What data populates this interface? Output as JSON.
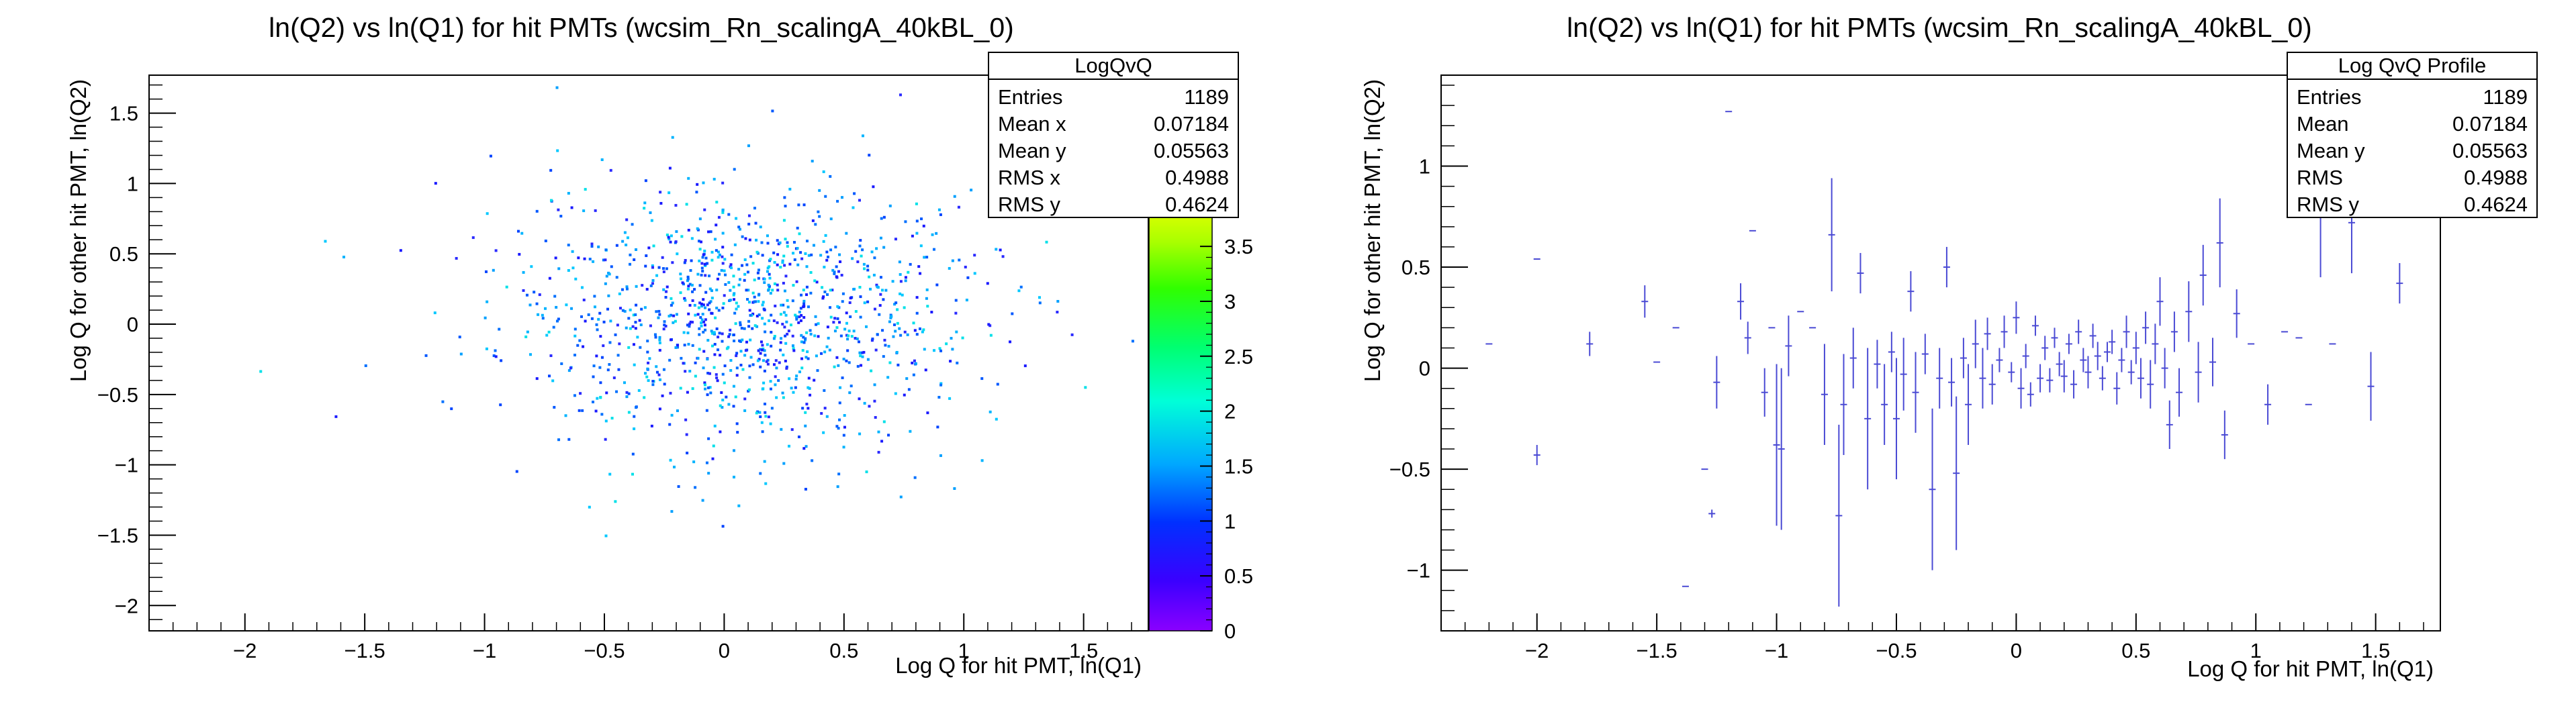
{
  "chart_data": [
    {
      "type": "heatmap",
      "title": "ln(Q2) vs ln(Q1) for hit PMTs (wcsim_Rn_scalingA_40kBL_0)",
      "xlabel": "Log Q for hit PMT, ln(Q1)",
      "ylabel": "Log Q for other hit PMT, ln(Q2)",
      "xlim": [
        -2.4,
        1.77
      ],
      "ylim": [
        -2.18,
        1.77
      ],
      "xticks": [
        "−2",
        "−1.5",
        "−1",
        "−0.5",
        "0",
        "0.5",
        "1",
        "1.5"
      ],
      "yticks": [
        "−2",
        "−1.5",
        "−1",
        "−0.5",
        "0",
        "0.5",
        "1",
        "1.5"
      ],
      "colorbar": {
        "min": 0,
        "max": 3.8,
        "ticks": [
          "0",
          "0.5",
          "1",
          "1.5",
          "2",
          "2.5",
          "3",
          "3.5"
        ]
      },
      "stats": {
        "name": "LogQvQ",
        "rows": [
          {
            "label": "Entries",
            "value": "1189"
          },
          {
            "label": "Mean x",
            "value": "0.07184"
          },
          {
            "label": "Mean y",
            "value": "0.05563"
          },
          {
            "label": "RMS x",
            "value": "0.4988"
          },
          {
            "label": "RMS y",
            "value": "0.4624"
          }
        ]
      },
      "distribution": {
        "entries": 1189,
        "mean_x": 0.07184,
        "mean_y": 0.05563,
        "rms_x": 0.4988,
        "rms_y": 0.4624
      }
    },
    {
      "type": "profile",
      "title": "ln(Q2) vs ln(Q1) for hit PMTs (wcsim_Rn_scalingA_40kBL_0)",
      "xlabel": "Log Q for hit PMT, ln(Q1)",
      "ylabel": "Log Q for other hit PMT, ln(Q2)",
      "xlim": [
        -2.4,
        1.77
      ],
      "ylim": [
        -1.3,
        1.45
      ],
      "xticks": [
        "−2",
        "−1.5",
        "−1",
        "−0.5",
        "0",
        "0.5",
        "1",
        "1.5"
      ],
      "yticks": [
        "−1",
        "−0.5",
        "0",
        "0.5",
        "1"
      ],
      "stats": {
        "name": "Log QvQ Profile",
        "rows": [
          {
            "label": "Entries",
            "value": "1189"
          },
          {
            "label": "Mean",
            "value": "0.07184"
          },
          {
            "label": "Mean y",
            "value": "0.05563"
          },
          {
            "label": "RMS",
            "value": "0.4988"
          },
          {
            "label": "RMS y",
            "value": "0.4624"
          }
        ]
      },
      "points": [
        [
          -2.2,
          0.12,
          0
        ],
        [
          -2.0,
          0.54,
          0
        ],
        [
          -2.0,
          -0.43,
          0.05
        ],
        [
          -1.78,
          0.12,
          0.06
        ],
        [
          -1.55,
          0.33,
          0.08
        ],
        [
          -1.5,
          0.03,
          0
        ],
        [
          -1.42,
          0.2,
          0
        ],
        [
          -1.38,
          -1.08,
          0
        ],
        [
          -1.3,
          -0.5,
          0
        ],
        [
          -1.27,
          -0.72,
          0.02
        ],
        [
          -1.25,
          -0.07,
          0.13
        ],
        [
          -1.2,
          1.27,
          0
        ],
        [
          -1.15,
          0.33,
          0.09
        ],
        [
          -1.12,
          0.15,
          0.08
        ],
        [
          -1.1,
          0.68,
          0
        ],
        [
          -1.05,
          -0.12,
          0.12
        ],
        [
          -1.02,
          0.2,
          0
        ],
        [
          -1.0,
          -0.38,
          0.4
        ],
        [
          -0.98,
          -0.4,
          0.4
        ],
        [
          -0.95,
          0.11,
          0.15
        ],
        [
          -0.9,
          0.28,
          0
        ],
        [
          -0.85,
          0.2,
          0
        ],
        [
          -0.8,
          -0.13,
          0.25
        ],
        [
          -0.77,
          0.66,
          0.28
        ],
        [
          -0.74,
          -0.73,
          0.45
        ],
        [
          -0.72,
          -0.18,
          0.25
        ],
        [
          -0.68,
          0.05,
          0.15
        ],
        [
          -0.65,
          0.47,
          0.1
        ],
        [
          -0.62,
          -0.25,
          0.35
        ],
        [
          -0.58,
          0.02,
          0.12
        ],
        [
          -0.55,
          -0.18,
          0.2
        ],
        [
          -0.52,
          0.08,
          0.1
        ],
        [
          -0.5,
          -0.25,
          0.3
        ],
        [
          -0.47,
          -0.03,
          0.18
        ],
        [
          -0.44,
          0.38,
          0.1
        ],
        [
          -0.42,
          -0.12,
          0.2
        ],
        [
          -0.38,
          0.07,
          0.1
        ],
        [
          -0.35,
          -0.6,
          0.4
        ],
        [
          -0.32,
          -0.05,
          0.15
        ],
        [
          -0.29,
          0.5,
          0.1
        ],
        [
          -0.27,
          -0.07,
          0.12
        ],
        [
          -0.25,
          -0.52,
          0.38
        ],
        [
          -0.22,
          0.05,
          0.1
        ],
        [
          -0.2,
          -0.18,
          0.2
        ],
        [
          -0.17,
          0.12,
          0.12
        ],
        [
          -0.14,
          -0.05,
          0.15
        ],
        [
          -0.12,
          0.17,
          0.08
        ],
        [
          -0.1,
          -0.08,
          0.1
        ],
        [
          -0.07,
          0.04,
          0.06
        ],
        [
          -0.05,
          0.18,
          0.08
        ],
        [
          -0.02,
          -0.02,
          0.05
        ],
        [
          0.0,
          0.25,
          0.08
        ],
        [
          0.02,
          -0.1,
          0.1
        ],
        [
          0.04,
          0.06,
          0.06
        ],
        [
          0.06,
          -0.13,
          0.06
        ],
        [
          0.08,
          0.21,
          0.05
        ],
        [
          0.1,
          -0.05,
          0.07
        ],
        [
          0.12,
          0.1,
          0.06
        ],
        [
          0.14,
          -0.06,
          0.06
        ],
        [
          0.16,
          0.15,
          0.05
        ],
        [
          0.18,
          0.02,
          0.06
        ],
        [
          0.2,
          -0.04,
          0.08
        ],
        [
          0.22,
          0.12,
          0.05
        ],
        [
          0.24,
          -0.08,
          0.07
        ],
        [
          0.26,
          0.18,
          0.06
        ],
        [
          0.28,
          0.04,
          0.06
        ],
        [
          0.3,
          -0.02,
          0.08
        ],
        [
          0.32,
          0.16,
          0.06
        ],
        [
          0.34,
          0.06,
          0.07
        ],
        [
          0.36,
          -0.05,
          0.06
        ],
        [
          0.38,
          0.08,
          0.05
        ],
        [
          0.4,
          0.13,
          0.06
        ],
        [
          0.42,
          -0.1,
          0.08
        ],
        [
          0.44,
          0.04,
          0.06
        ],
        [
          0.46,
          0.18,
          0.08
        ],
        [
          0.48,
          -0.02,
          0.06
        ],
        [
          0.5,
          0.1,
          0.08
        ],
        [
          0.52,
          -0.05,
          0.1
        ],
        [
          0.54,
          0.2,
          0.08
        ],
        [
          0.56,
          -0.08,
          0.12
        ],
        [
          0.58,
          0.12,
          0.1
        ],
        [
          0.6,
          0.33,
          0.12
        ],
        [
          0.62,
          0.0,
          0.1
        ],
        [
          0.64,
          -0.28,
          0.12
        ],
        [
          0.66,
          0.18,
          0.1
        ],
        [
          0.68,
          -0.12,
          0.12
        ],
        [
          0.72,
          0.28,
          0.15
        ],
        [
          0.76,
          -0.02,
          0.15
        ],
        [
          0.78,
          0.46,
          0.15
        ],
        [
          0.82,
          0.03,
          0.12
        ],
        [
          0.85,
          0.62,
          0.22
        ],
        [
          0.87,
          -0.33,
          0.12
        ],
        [
          0.92,
          0.27,
          0.12
        ],
        [
          0.98,
          0.12,
          0
        ],
        [
          1.05,
          -0.18,
          0.1
        ],
        [
          1.12,
          0.18,
          0
        ],
        [
          1.18,
          0.15,
          0
        ],
        [
          1.22,
          -0.18,
          0
        ],
        [
          1.27,
          0.75,
          0.3
        ],
        [
          1.32,
          0.12,
          0
        ],
        [
          1.4,
          0.72,
          0.25
        ],
        [
          1.48,
          -0.09,
          0.17
        ],
        [
          1.6,
          0.42,
          0.1
        ]
      ]
    }
  ]
}
